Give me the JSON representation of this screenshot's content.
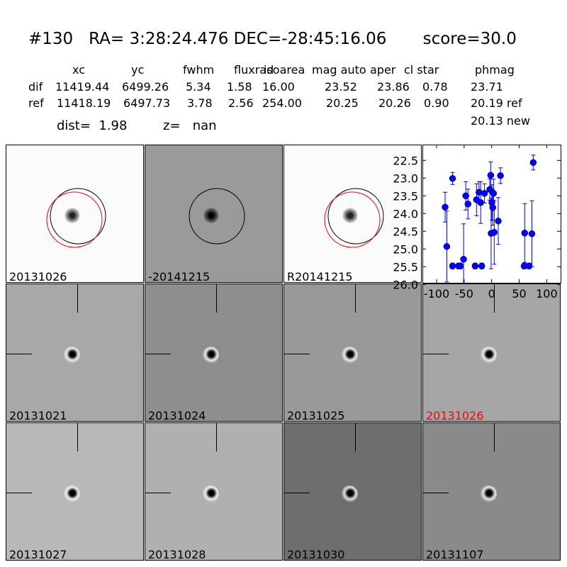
{
  "title": "#130   RA= 3:28:24.476 DEC=-28:45:16.06       score=30.0",
  "table": {
    "headers": [
      "xc",
      "yc",
      "fwhm",
      "fluxrad",
      "isoarea",
      "mag auto",
      "aper",
      "cl star",
      "phmag"
    ],
    "dif": {
      "label": "dif",
      "values": [
        "11419.44",
        "6499.26",
        "5.34",
        "1.58",
        "16.00",
        "23.52",
        "23.86",
        "0.78",
        "23.71"
      ]
    },
    "ref": {
      "label": "ref",
      "values": [
        "11418.19",
        "6497.73",
        "3.78",
        "2.56",
        "254.00",
        "20.25",
        "20.26",
        "0.90",
        "20.19 ref"
      ]
    },
    "new": "20.13 new",
    "dist": "dist=  1.98",
    "z": "z=   nan"
  },
  "panels": [
    {
      "label": "20131026",
      "bg": "#fbfbfb",
      "circles": true
    },
    {
      "label": "-20141215",
      "bg": "#9a9a9a",
      "circles": true
    },
    {
      "label": "R20141215",
      "bg": "#fbfbfb",
      "circles": true
    },
    {
      "label": "20131021",
      "bg": "#a8a8a8"
    },
    {
      "label": "20131024",
      "bg": "#8e8e8e"
    },
    {
      "label": "20131025",
      "bg": "#999999"
    },
    {
      "label": "20131026",
      "bg": "#a6a6a6",
      "highlight": "#ff0000"
    },
    {
      "label": "20131027",
      "bg": "#b8b8b8"
    },
    {
      "label": "20131028",
      "bg": "#b0b0b0"
    },
    {
      "label": "20131030",
      "bg": "#6e6e6e"
    },
    {
      "label": "20131107",
      "bg": "#8a8a8a"
    }
  ],
  "chart_data": {
    "type": "scatter",
    "color": "#0000ff",
    "xlim": [
      -120,
      125
    ],
    "ylim": [
      26.0,
      22.2
    ],
    "xticks": [
      "-100",
      "-50",
      "0",
      "50",
      "100"
    ],
    "yticks": [
      "22.5",
      "23.0",
      "23.5",
      "24.0",
      "24.5",
      "25.0",
      "25.5",
      "26.0"
    ],
    "points": [
      {
        "x": -84.5,
        "y": 23.82,
        "e": 0.42
      },
      {
        "x": -81.5,
        "y": 24.93,
        "e": 1.0
      },
      {
        "x": -71,
        "y": 23.01,
        "e": 0.17
      },
      {
        "x": -71,
        "y": 25.48,
        "e": 0.08
      },
      {
        "x": -60,
        "y": 25.48,
        "e": 0.08
      },
      {
        "x": -57,
        "y": 25.48,
        "e": 0.08
      },
      {
        "x": -51,
        "y": 25.29,
        "e": 1.0
      },
      {
        "x": -47,
        "y": 23.5,
        "e": 0.4
      },
      {
        "x": -43,
        "y": 23.73,
        "e": 0.42
      },
      {
        "x": -30,
        "y": 25.48,
        "e": 0.08
      },
      {
        "x": -27.5,
        "y": 23.61,
        "e": 0.45
      },
      {
        "x": -23,
        "y": 23.4,
        "e": 0.3
      },
      {
        "x": -20,
        "y": 23.69,
        "e": 0.59
      },
      {
        "x": -18,
        "y": 25.48,
        "e": 0.08
      },
      {
        "x": -13,
        "y": 23.43,
        "e": 0.27
      },
      {
        "x": -3.4,
        "y": 23.32,
        "e": 0.3
      },
      {
        "x": -1.7,
        "y": 22.92,
        "e": 0.38
      },
      {
        "x": -1,
        "y": 24.56,
        "e": 1.0
      },
      {
        "x": 0.4,
        "y": 23.69,
        "e": 0.5
      },
      {
        "x": 2,
        "y": 23.83,
        "e": 0.5
      },
      {
        "x": 3.4,
        "y": 23.43,
        "e": 0.4
      },
      {
        "x": 4.7,
        "y": 24.53,
        "e": 0.9
      },
      {
        "x": 12,
        "y": 24.21,
        "e": 0.66
      },
      {
        "x": 16,
        "y": 22.93,
        "e": 0.22
      },
      {
        "x": 60,
        "y": 24.55,
        "e": 0.83
      },
      {
        "x": 59,
        "y": 25.48,
        "e": 0.08
      },
      {
        "x": 68,
        "y": 25.48,
        "e": 0.08
      },
      {
        "x": 73,
        "y": 24.57,
        "e": 0.93
      },
      {
        "x": 75.5,
        "y": 22.56,
        "e": 0.21
      }
    ]
  }
}
